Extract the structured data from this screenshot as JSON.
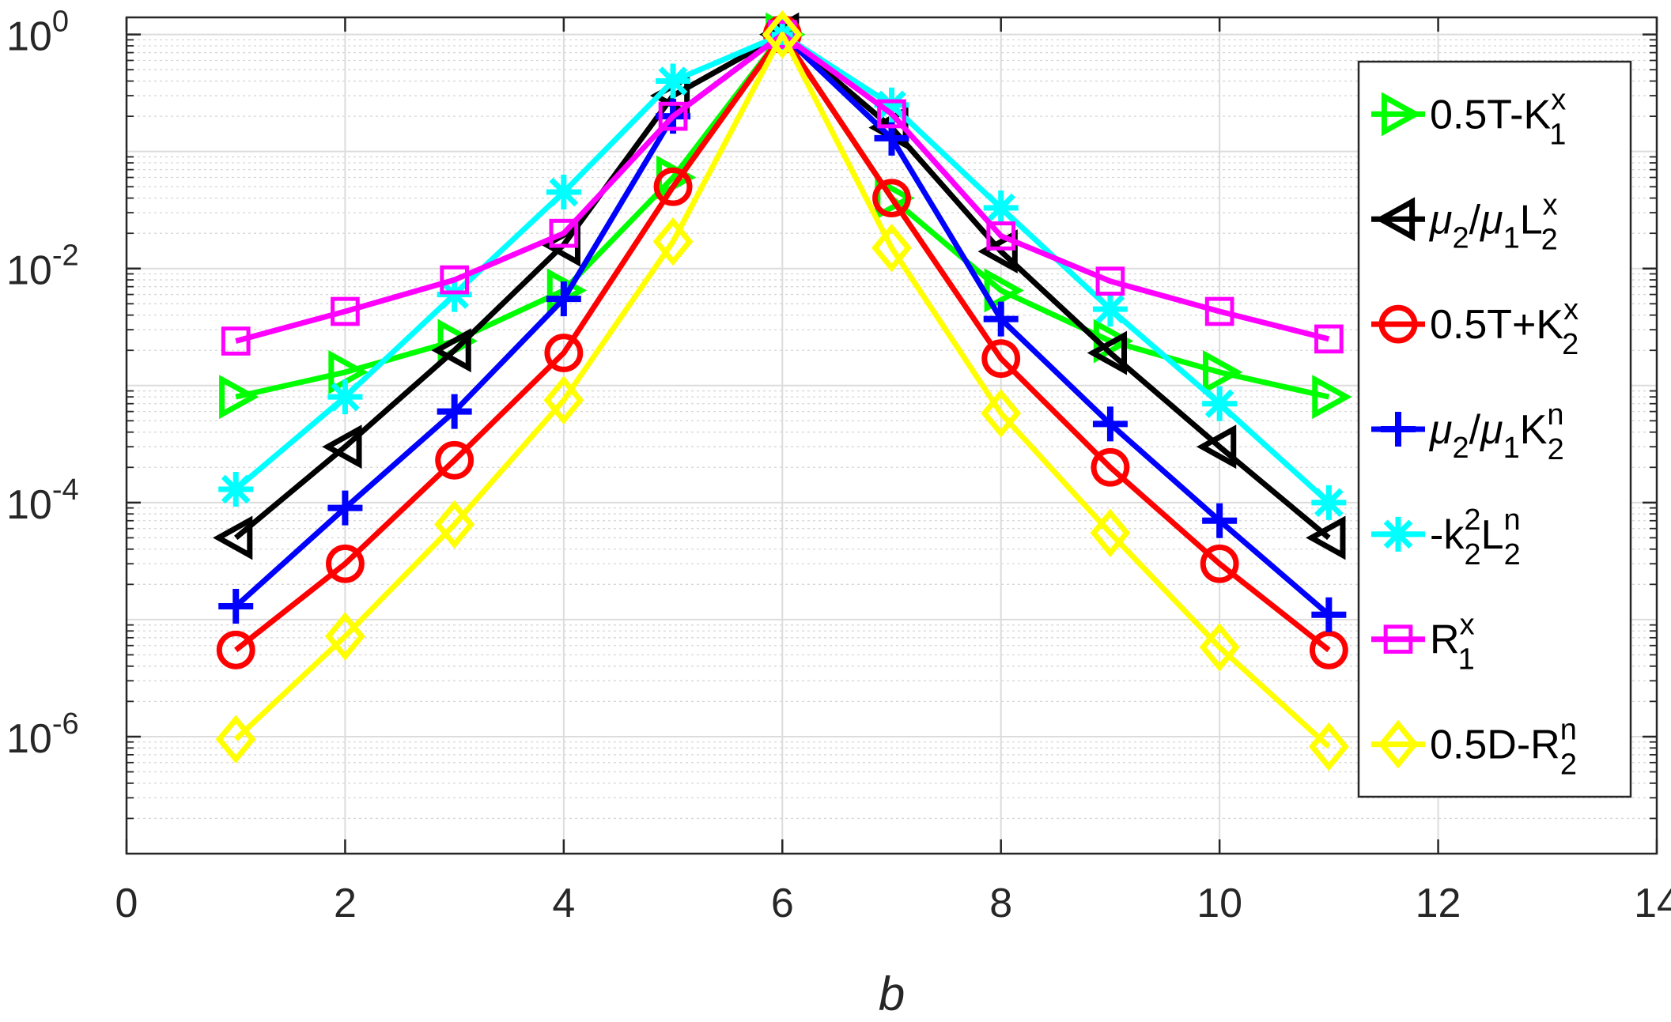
{
  "chart_data": {
    "type": "line",
    "title": "",
    "xlabel": "b",
    "ylabel": "",
    "xscale": "linear",
    "yscale": "log",
    "xlim": [
      0,
      14
    ],
    "ylim": [
      1e-07,
      1.4
    ],
    "xticks": [
      0,
      2,
      4,
      6,
      8,
      10,
      12,
      14
    ],
    "xtick_labels": [
      "0",
      "2",
      "4",
      "6",
      "8",
      "10",
      "12",
      "14"
    ],
    "yticks": [
      1,
      0.01,
      0.0001,
      1e-06
    ],
    "ytick_labels": [
      {
        "base": "10",
        "exp": "0"
      },
      {
        "base": "10",
        "exp": "-2"
      },
      {
        "base": "10",
        "exp": "-4"
      },
      {
        "base": "10",
        "exp": "-6"
      }
    ],
    "grid": true,
    "minor_grid": true,
    "legend_position": "right",
    "x": [
      1,
      2,
      3,
      4,
      5,
      6,
      7,
      8,
      9,
      10,
      11
    ],
    "series": [
      {
        "name": "0.5T-K1x",
        "label": {
          "main": "0.5T-K",
          "sup": "x",
          "sub": "1",
          "mu": false
        },
        "color": "#00ff00",
        "marker": "triangle-right",
        "values": [
          0.0008,
          0.0013,
          0.0024,
          0.0065,
          0.06,
          1.0,
          0.04,
          0.0065,
          0.0024,
          0.0013,
          0.0008
        ]
      },
      {
        "name": "mu2/mu1 L2x",
        "label": {
          "main": "L",
          "sup": "x",
          "sub": "2",
          "mu": true
        },
        "color": "#000000",
        "marker": "triangle-left",
        "values": [
          5e-05,
          0.0003,
          0.002,
          0.016,
          0.3,
          1.0,
          0.16,
          0.014,
          0.0019,
          0.0003,
          5e-05
        ]
      },
      {
        "name": "0.5T+K2x",
        "label": {
          "main": "0.5T+K",
          "sup": "x",
          "sub": "2",
          "mu": false
        },
        "color": "#ff0000",
        "marker": "circle",
        "values": [
          5.5e-06,
          3e-05,
          0.00023,
          0.0019,
          0.05,
          1.0,
          0.04,
          0.0017,
          0.0002,
          3e-05,
          5.5e-06
        ]
      },
      {
        "name": "mu2/mu1 K2n",
        "label": {
          "main": "K",
          "sup": "n",
          "sub": "2",
          "mu": true
        },
        "color": "#0000ff",
        "marker": "plus",
        "values": [
          1.3e-05,
          9e-05,
          0.0006,
          0.0055,
          0.2,
          1.0,
          0.13,
          0.0037,
          0.00047,
          7e-05,
          1.1e-05
        ]
      },
      {
        "name": "-k2^2 L2n",
        "label": {
          "main": "-k",
          "sup": "2",
          "sub": "2",
          "mid": "L",
          "sup2": "n",
          "sub2": "2",
          "mu": false
        },
        "color": "#00ffff",
        "marker": "asterisk",
        "values": [
          0.00013,
          0.0008,
          0.006,
          0.045,
          0.4,
          1.0,
          0.25,
          0.033,
          0.0045,
          0.0007,
          0.0001
        ]
      },
      {
        "name": "R1x",
        "label": {
          "main": "R",
          "sup": "x",
          "sub": "1",
          "mu": false
        },
        "color": "#ff00ff",
        "marker": "square",
        "values": [
          0.0024,
          0.0043,
          0.008,
          0.02,
          0.2,
          1.0,
          0.21,
          0.019,
          0.0078,
          0.0043,
          0.0025
        ]
      },
      {
        "name": "0.5D-R2n",
        "label": {
          "main": "0.5D-R",
          "sup": "n",
          "sub": "2",
          "mu": false
        },
        "color": "#ffff00",
        "marker": "diamond",
        "values": [
          9.5e-07,
          7.2e-06,
          6.5e-05,
          0.00075,
          0.017,
          1.0,
          0.015,
          0.00058,
          5.5e-05,
          5.8e-06,
          8.2e-07
        ]
      }
    ]
  }
}
